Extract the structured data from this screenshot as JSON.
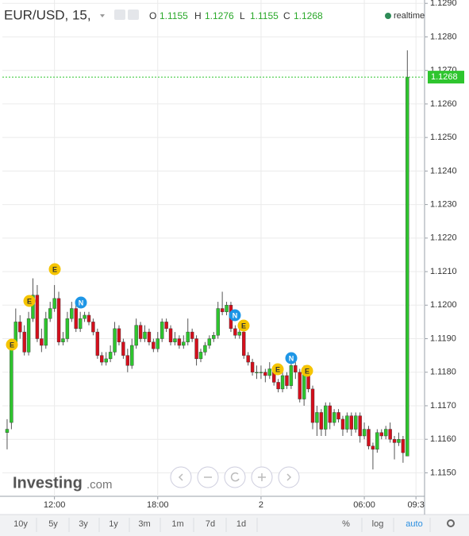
{
  "chart_data": {
    "type": "candlestick",
    "title": "EUR/USD, 15,",
    "status": "realtime",
    "ohlc_labels": [
      "O",
      "H",
      "L",
      "C"
    ],
    "up_color": "#2ec52e",
    "down_color": "#d40f1c",
    "grid": true,
    "xlim": [
      -1.1,
      97
    ],
    "xticks": [
      {
        "value": 11,
        "label": "12:00"
      },
      {
        "value": 35,
        "label": "18:00"
      },
      {
        "value": 59,
        "label": "2"
      },
      {
        "value": 83,
        "label": "06:00"
      },
      {
        "value": 95,
        "label": "09:3"
      }
    ],
    "ylim": [
      1.1143,
      1.1291
    ],
    "yticks": [
      {
        "value": 1.115,
        "label": "1.1150"
      },
      {
        "value": 1.116,
        "label": "1.1160"
      },
      {
        "value": 1.117,
        "label": "1.1170"
      },
      {
        "value": 1.118,
        "label": "1.1180"
      },
      {
        "value": 1.119,
        "label": "1.1190"
      },
      {
        "value": 1.12,
        "label": "1.1200"
      },
      {
        "value": 1.121,
        "label": "1.1210"
      },
      {
        "value": 1.122,
        "label": "1.1220"
      },
      {
        "value": 1.123,
        "label": "1.1230"
      },
      {
        "value": 1.124,
        "label": "1.1240"
      },
      {
        "value": 1.125,
        "label": "1.1250"
      },
      {
        "value": 1.126,
        "label": "1.1260"
      },
      {
        "value": 1.127,
        "label": "1.1270"
      },
      {
        "value": 1.128,
        "label": "1.1280"
      },
      {
        "value": 1.129,
        "label": "1.1290"
      }
    ],
    "x": [
      0,
      1,
      2,
      3,
      4,
      5,
      6,
      7,
      8,
      9,
      10,
      11,
      12,
      13,
      14,
      15,
      16,
      17,
      18,
      19,
      20,
      21,
      22,
      23,
      24,
      25,
      26,
      27,
      28,
      29,
      30,
      31,
      32,
      33,
      34,
      35,
      36,
      37,
      38,
      39,
      40,
      41,
      42,
      43,
      44,
      45,
      46,
      47,
      48,
      49,
      50,
      51,
      52,
      53,
      54,
      55,
      56,
      57,
      58,
      59,
      60,
      61,
      62,
      63,
      64,
      65,
      66,
      67,
      68,
      69,
      70,
      71,
      72,
      73,
      74,
      75,
      76,
      77,
      78,
      79,
      80,
      81,
      82,
      83,
      84,
      85,
      86,
      87,
      88,
      89,
      90,
      91,
      92,
      93
    ],
    "open": [
      1.1162,
      1.1165,
      1.1188,
      1.1195,
      1.1192,
      1.1186,
      1.1196,
      1.1203,
      1.119,
      1.1188,
      1.1196,
      1.1199,
      1.1202,
      1.1189,
      1.119,
      1.1196,
      1.1199,
      1.1193,
      1.1196,
      1.1197,
      1.1195,
      1.1192,
      1.1185,
      1.1183,
      1.1184,
      1.1186,
      1.1193,
      1.1189,
      1.1185,
      1.1182,
      1.1188,
      1.1194,
      1.119,
      1.1192,
      1.1189,
      1.1187,
      1.119,
      1.1195,
      1.1193,
      1.1189,
      1.119,
      1.1188,
      1.1189,
      1.1192,
      1.119,
      1.1184,
      1.1186,
      1.1188,
      1.119,
      1.1191,
      1.1199,
      1.1198,
      1.12,
      1.1193,
      1.1191,
      1.1192,
      1.1185,
      1.1183,
      1.118,
      1.118,
      1.118,
      1.1179,
      1.1181,
      1.1177,
      1.1175,
      1.1179,
      1.1176,
      1.1182,
      1.118,
      1.1172,
      1.118,
      1.1175,
      1.1165,
      1.1168,
      1.1163,
      1.117,
      1.1165,
      1.1168,
      1.1166,
      1.1163,
      1.1167,
      1.1163,
      1.1167,
      1.1161,
      1.1163,
      1.1158,
      1.1157,
      1.1162,
      1.1161,
      1.1163,
      1.116,
      1.1159,
      1.116,
      1.1155
    ],
    "high": [
      1.1166,
      1.119,
      1.1199,
      1.1197,
      1.1194,
      1.1198,
      1.1208,
      1.1206,
      1.1193,
      1.1198,
      1.1201,
      1.1206,
      1.1204,
      1.1192,
      1.1198,
      1.1201,
      1.12,
      1.1198,
      1.1198,
      1.1198,
      1.1196,
      1.1193,
      1.1186,
      1.1186,
      1.1188,
      1.1195,
      1.1194,
      1.119,
      1.1187,
      1.119,
      1.1196,
      1.1195,
      1.1194,
      1.1193,
      1.119,
      1.1192,
      1.1196,
      1.1196,
      1.1194,
      1.1192,
      1.1191,
      1.1191,
      1.1196,
      1.1193,
      1.1191,
      1.1187,
      1.1189,
      1.1191,
      1.1192,
      1.1201,
      1.1204,
      1.1201,
      1.1201,
      1.1194,
      1.1193,
      1.1193,
      1.1186,
      1.1184,
      1.1182,
      1.1182,
      1.1181,
      1.1183,
      1.1182,
      1.1178,
      1.118,
      1.118,
      1.1184,
      1.1183,
      1.1181,
      1.1182,
      1.1181,
      1.1176,
      1.117,
      1.1169,
      1.1171,
      1.1171,
      1.1169,
      1.1169,
      1.1167,
      1.1168,
      1.1168,
      1.1168,
      1.1168,
      1.1165,
      1.1164,
      1.1159,
      1.1163,
      1.1163,
      1.1164,
      1.1165,
      1.1161,
      1.1162,
      1.1161,
      1.1276
    ],
    "low": [
      1.1157,
      1.1163,
      1.1187,
      1.119,
      1.1185,
      1.1185,
      1.1195,
      1.1189,
      1.1186,
      1.1187,
      1.1195,
      1.1198,
      1.1188,
      1.1188,
      1.1189,
      1.1195,
      1.1192,
      1.1192,
      1.1195,
      1.1194,
      1.1191,
      1.1184,
      1.1182,
      1.1182,
      1.1183,
      1.1185,
      1.1188,
      1.1184,
      1.118,
      1.1181,
      1.1187,
      1.1189,
      1.1189,
      1.1188,
      1.1186,
      1.1186,
      1.1189,
      1.1192,
      1.1188,
      1.1188,
      1.1187,
      1.1187,
      1.1188,
      1.1189,
      1.1182,
      1.1183,
      1.1185,
      1.1187,
      1.1189,
      1.119,
      1.1197,
      1.1197,
      1.1192,
      1.119,
      1.119,
      1.1184,
      1.1182,
      1.1179,
      1.1178,
      1.1178,
      1.1177,
      1.1178,
      1.1176,
      1.1174,
      1.1174,
      1.1175,
      1.1175,
      1.1178,
      1.1171,
      1.117,
      1.1174,
      1.1163,
      1.1161,
      1.1161,
      1.1161,
      1.1163,
      1.1164,
      1.1165,
      1.1161,
      1.1162,
      1.1161,
      1.1162,
      1.1159,
      1.116,
      1.1157,
      1.1151,
      1.1156,
      1.116,
      1.116,
      1.1159,
      1.1154,
      1.1158,
      1.1153,
      1.1155
    ],
    "close": [
      1.1163,
      1.1188,
      1.1195,
      1.1192,
      1.1186,
      1.1196,
      1.1203,
      1.119,
      1.1188,
      1.1196,
      1.1199,
      1.1202,
      1.1189,
      1.119,
      1.1196,
      1.1199,
      1.1193,
      1.1196,
      1.1197,
      1.1195,
      1.1192,
      1.1185,
      1.1183,
      1.1184,
      1.1186,
      1.1193,
      1.1189,
      1.1185,
      1.1182,
      1.1188,
      1.1194,
      1.119,
      1.1192,
      1.1189,
      1.1187,
      1.119,
      1.1195,
      1.1193,
      1.1189,
      1.119,
      1.1188,
      1.1189,
      1.1192,
      1.119,
      1.1184,
      1.1186,
      1.1188,
      1.119,
      1.1191,
      1.1199,
      1.1198,
      1.12,
      1.1193,
      1.1191,
      1.1192,
      1.1185,
      1.1183,
      1.118,
      1.118,
      1.118,
      1.1179,
      1.1181,
      1.1177,
      1.1175,
      1.1179,
      1.1176,
      1.1182,
      1.118,
      1.1172,
      1.118,
      1.1175,
      1.1165,
      1.1168,
      1.1163,
      1.117,
      1.1165,
      1.1168,
      1.1166,
      1.1163,
      1.1167,
      1.1163,
      1.1167,
      1.1161,
      1.1163,
      1.1158,
      1.1157,
      1.1162,
      1.1161,
      1.1163,
      1.116,
      1.1159,
      1.116,
      1.1156,
      1.1268
    ],
    "events": [
      {
        "label": "E",
        "color": "#f5c400"
      },
      {
        "label": "E",
        "color": "#f5c400"
      },
      {
        "label": "E",
        "color": "#f5c400"
      },
      {
        "label": "N",
        "color": "#1e96e6"
      },
      {
        "label": "N",
        "color": "#1e96e6"
      },
      {
        "label": "E",
        "color": "#f5c400"
      },
      {
        "label": "E",
        "color": "#f5c400"
      },
      {
        "label": "N",
        "color": "#1e96e6"
      },
      {
        "label": "E",
        "color": "#f5c400"
      }
    ],
    "logo": [
      "Investing",
      ".com"
    ],
    "toolbar_left": [
      "10y",
      "5y",
      "3y",
      "1y",
      "3m",
      "1m",
      "7d",
      "1d"
    ],
    "toolbar_right": [
      "%",
      "log",
      "auto"
    ]
  }
}
